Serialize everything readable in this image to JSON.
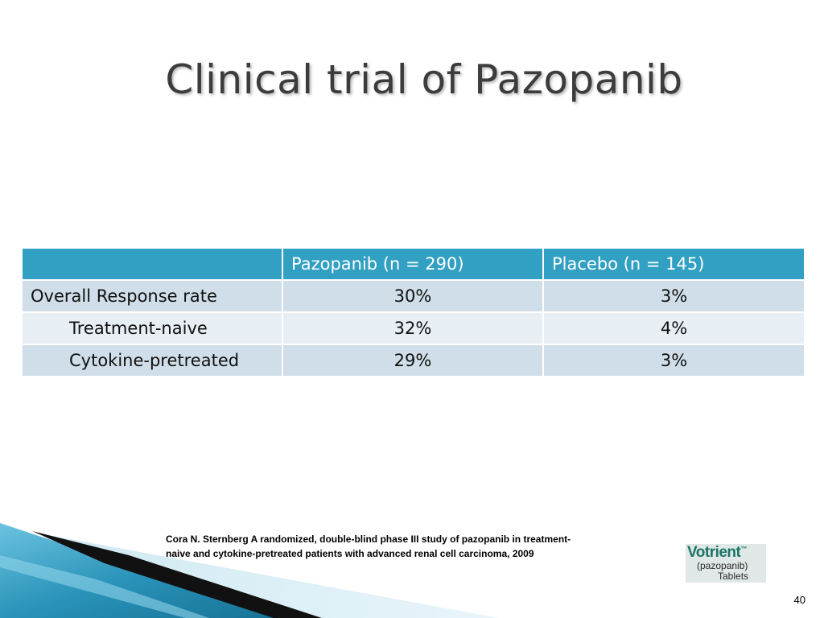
{
  "slide": {
    "title": "Clinical trial of Pazopanib",
    "page_number": "40"
  },
  "table": {
    "headers": [
      "",
      "Pazopanib (n = 290)",
      "Placebo (n = 145)"
    ],
    "rows": [
      [
        "Overall Response rate",
        "30%",
        "3%"
      ],
      [
        "Treatment-naive",
        "32%",
        "4%"
      ],
      [
        "Cytokine-pretreated",
        "29%",
        "3%"
      ]
    ]
  },
  "citation": {
    "line1": "Cora N. Sternberg A randomized, double-blind phase III study of pazopanib in treatment-",
    "line2": "naive and cytokine-pretreated patients with advanced renal cell carcinoma, 2009"
  },
  "logo": {
    "brand": "Votrient",
    "trademark": "™",
    "generic": "(pazopanib)",
    "form": "Tablets"
  },
  "colors": {
    "header_bg": "#31a0c2",
    "row_dark": "#cfdee8",
    "row_light": "#e7eef4",
    "title_text": "#3c3c3c",
    "wave_blue": "#2a93b9"
  }
}
